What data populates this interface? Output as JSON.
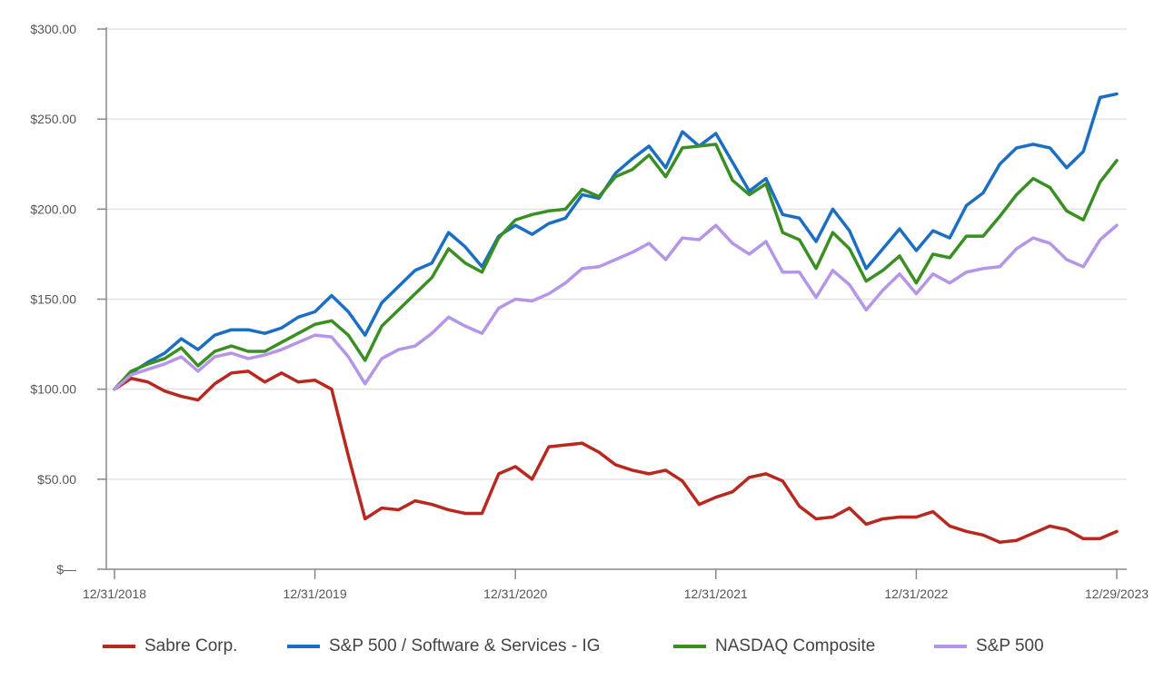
{
  "chart_data": {
    "type": "line",
    "title": "",
    "xlabel": "",
    "ylabel": "",
    "ylim": [
      0,
      300
    ],
    "y_ticks": [
      0,
      50,
      100,
      150,
      200,
      250,
      300
    ],
    "y_tick_labels": [
      "$—",
      "$50.00",
      "$100.00",
      "$150.00",
      "$200.00",
      "$250.00",
      "$300.00"
    ],
    "x_tick_labels": [
      "12/31/2018",
      "12/31/2019",
      "12/31/2020",
      "12/31/2021",
      "12/31/2022",
      "12/29/2023"
    ],
    "x_tick_index": [
      0,
      12,
      24,
      36,
      48,
      60
    ],
    "grid": true,
    "legend_position": "bottom",
    "series": [
      {
        "name": "Sabre Corp.",
        "color": "#b8281e",
        "values": [
          100,
          106,
          104,
          99,
          96,
          94,
          103,
          109,
          110,
          104,
          109,
          104,
          105,
          100,
          63,
          28,
          34,
          33,
          38,
          36,
          33,
          31,
          31,
          53,
          57,
          50,
          68,
          69,
          70,
          65,
          58,
          55,
          53,
          55,
          49,
          36,
          40,
          43,
          51,
          53,
          49,
          35,
          28,
          29,
          34,
          25,
          28,
          29,
          29,
          32,
          24,
          21,
          19,
          15,
          16,
          20,
          24,
          22,
          17,
          17,
          21
        ]
      },
      {
        "name": "S&P 500 / Software & Services - IG",
        "color": "#1a6fc4",
        "values": [
          100,
          109,
          115,
          120,
          128,
          122,
          130,
          133,
          133,
          131,
          134,
          140,
          143,
          152,
          143,
          130,
          148,
          157,
          166,
          170,
          187,
          179,
          168,
          185,
          191,
          186,
          192,
          195,
          208,
          206,
          220,
          228,
          235,
          223,
          243,
          235,
          242,
          226,
          210,
          217,
          197,
          195,
          182,
          200,
          188,
          167,
          178,
          189,
          177,
          188,
          184,
          202,
          209,
          225,
          234,
          236,
          234,
          223,
          232,
          262,
          264
        ]
      },
      {
        "name": "NASDAQ Composite",
        "color": "#3a8f22",
        "values": [
          100,
          110,
          114,
          117,
          123,
          113,
          121,
          124,
          121,
          121,
          126,
          131,
          136,
          138,
          130,
          116,
          135,
          144,
          153,
          162,
          178,
          170,
          165,
          184,
          194,
          197,
          199,
          200,
          211,
          207,
          218,
          222,
          230,
          218,
          234,
          235,
          236,
          216,
          208,
          214,
          187,
          183,
          167,
          187,
          178,
          160,
          166,
          174,
          159,
          175,
          173,
          185,
          185,
          196,
          208,
          217,
          212,
          199,
          194,
          215,
          227
        ]
      },
      {
        "name": "S&P 500",
        "color": "#b495e9",
        "values": [
          100,
          108,
          111,
          114,
          118,
          110,
          118,
          120,
          117,
          119,
          122,
          126,
          130,
          129,
          118,
          103,
          117,
          122,
          124,
          131,
          140,
          135,
          131,
          145,
          150,
          149,
          153,
          159,
          167,
          168,
          172,
          176,
          181,
          172,
          184,
          183,
          191,
          181,
          175,
          182,
          165,
          165,
          151,
          166,
          158,
          144,
          155,
          164,
          153,
          164,
          159,
          165,
          167,
          168,
          178,
          184,
          181,
          172,
          168,
          183,
          191
        ]
      }
    ]
  }
}
